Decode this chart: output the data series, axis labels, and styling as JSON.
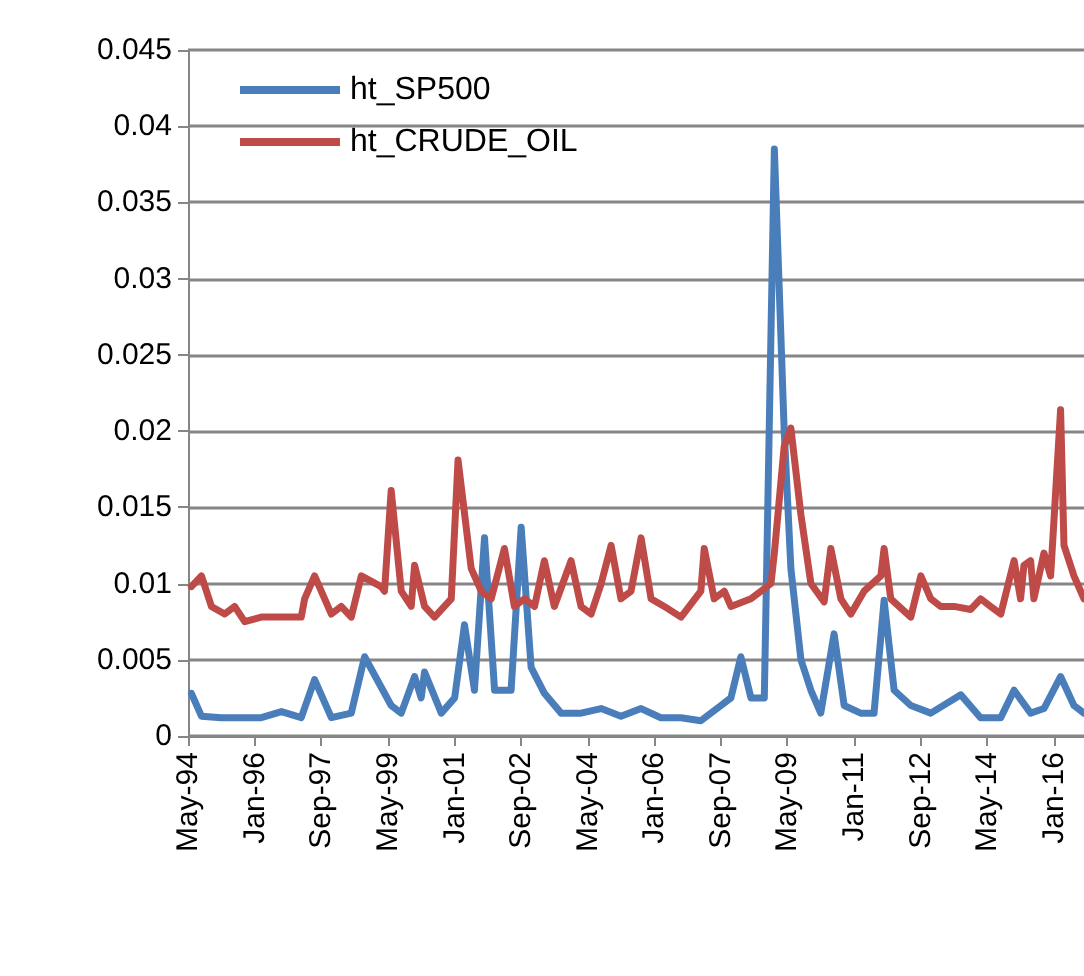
{
  "chart_data": {
    "type": "line",
    "x": [
      "1994-06",
      "1994-09",
      "1995-03",
      "1996-03",
      "1996-09",
      "1997-03",
      "1997-07",
      "1997-12",
      "1998-06",
      "1998-10",
      "1999-06",
      "1999-09",
      "2000-01",
      "2000-03",
      "2000-04",
      "2000-09",
      "2001-01",
      "2001-04",
      "2001-07",
      "2001-10",
      "2002-01",
      "2002-06",
      "2002-09",
      "2002-12",
      "2003-04",
      "2003-09",
      "2004-03",
      "2004-09",
      "2005-03",
      "2005-09",
      "2006-03",
      "2006-09",
      "2007-03",
      "2007-09",
      "2007-12",
      "2008-03",
      "2008-06",
      "2008-10",
      "2009-01",
      "2009-04",
      "2009-06",
      "2009-09",
      "2009-12",
      "2010-03",
      "2010-07",
      "2010-10",
      "2011-03",
      "2011-07",
      "2011-10",
      "2012-01",
      "2012-06",
      "2012-12",
      "2013-09",
      "2014-03",
      "2014-09",
      "2015-01",
      "2015-06",
      "2015-10",
      "2016-03",
      "2016-07",
      "2016-10"
    ],
    "series": [
      {
        "name": "ht_SP500",
        "color": "#4a7ebb",
        "values": [
          0.0028,
          0.0013,
          0.0012,
          0.0012,
          0.0016,
          0.0012,
          0.0037,
          0.0012,
          0.0015,
          0.0052,
          0.002,
          0.0015,
          0.0039,
          0.0025,
          0.0042,
          0.0015,
          0.0025,
          0.0073,
          0.003,
          0.013,
          0.003,
          0.003,
          0.0137,
          0.0045,
          0.0028,
          0.0015,
          0.0015,
          0.0018,
          0.0013,
          0.0018,
          0.0012,
          0.0012,
          0.001,
          0.002,
          0.0025,
          0.0052,
          0.0025,
          0.0025,
          0.0385,
          0.02,
          0.011,
          0.005,
          0.003,
          0.0015,
          0.0067,
          0.002,
          0.0015,
          0.0015,
          0.0089,
          0.003,
          0.002,
          0.0015,
          0.0027,
          0.0012,
          0.0012,
          0.003,
          0.0015,
          0.0018,
          0.0039,
          0.002,
          0.0015
        ]
      },
      {
        "name": "ht_CRUDE_OIL",
        "color": "#be4b48",
        "x": [
          "1994-06",
          "1994-09",
          "1994-12",
          "1995-04",
          "1995-07",
          "1995-10",
          "1996-03",
          "1996-09",
          "1997-03",
          "1997-04",
          "1997-07",
          "1997-12",
          "1998-03",
          "1998-06",
          "1998-09",
          "1999-03",
          "1999-04",
          "1999-06",
          "1999-09",
          "1999-12",
          "2000-01",
          "2000-04",
          "2000-07",
          "2000-12",
          "2001-02",
          "2001-06",
          "2001-09",
          "2001-12",
          "2002-04",
          "2002-07",
          "2002-10",
          "2003-01",
          "2003-04",
          "2003-07",
          "2003-12",
          "2004-03",
          "2004-06",
          "2004-09",
          "2004-12",
          "2005-03",
          "2005-06",
          "2005-09",
          "2005-12",
          "2006-04",
          "2006-09",
          "2007-03",
          "2007-04",
          "2007-07",
          "2007-10",
          "2007-12",
          "2008-06",
          "2008-12",
          "2009-01",
          "2009-04",
          "2009-06",
          "2009-09",
          "2009-12",
          "2010-04",
          "2010-06",
          "2010-09",
          "2010-12",
          "2011-04",
          "2011-09",
          "2011-10",
          "2011-12",
          "2012-06",
          "2012-09",
          "2012-12",
          "2013-03",
          "2013-07",
          "2013-12",
          "2014-03",
          "2014-06",
          "2014-09",
          "2015-01",
          "2015-03",
          "2015-04",
          "2015-06",
          "2015-07",
          "2015-10",
          "2015-12",
          "2016-03",
          "2016-04",
          "2016-07",
          "2016-10"
        ],
        "values": [
          0.0098,
          0.0105,
          0.0085,
          0.008,
          0.0085,
          0.0075,
          0.0078,
          0.0078,
          0.0078,
          0.009,
          0.0105,
          0.008,
          0.0085,
          0.0078,
          0.0105,
          0.0098,
          0.0095,
          0.0161,
          0.0095,
          0.0085,
          0.0112,
          0.0085,
          0.0078,
          0.009,
          0.0181,
          0.011,
          0.0095,
          0.009,
          0.0123,
          0.0085,
          0.009,
          0.0085,
          0.0115,
          0.0085,
          0.0115,
          0.0085,
          0.008,
          0.01,
          0.0125,
          0.009,
          0.0095,
          0.013,
          0.009,
          0.0085,
          0.0078,
          0.0095,
          0.0123,
          0.009,
          0.0095,
          0.0085,
          0.009,
          0.01,
          0.012,
          0.019,
          0.0202,
          0.0145,
          0.01,
          0.0088,
          0.0123,
          0.009,
          0.008,
          0.0095,
          0.0105,
          0.0123,
          0.009,
          0.0078,
          0.0105,
          0.009,
          0.0085,
          0.0085,
          0.0083,
          0.009,
          0.0085,
          0.008,
          0.0115,
          0.009,
          0.0112,
          0.0115,
          0.009,
          0.012,
          0.0105,
          0.0214,
          0.0125,
          0.0105,
          0.009
        ]
      }
    ],
    "xlim": [
      "1994-05",
      "2016-10"
    ],
    "xticks": [
      {
        "value": "1994-05",
        "label": "May-94"
      },
      {
        "value": "1996-01",
        "label": "Jan-96"
      },
      {
        "value": "1997-09",
        "label": "Sep-97"
      },
      {
        "value": "1999-05",
        "label": "May-99"
      },
      {
        "value": "2001-01",
        "label": "Jan-01"
      },
      {
        "value": "2002-09",
        "label": "Sep-02"
      },
      {
        "value": "2004-05",
        "label": "May-04"
      },
      {
        "value": "2006-01",
        "label": "Jan-06"
      },
      {
        "value": "2007-09",
        "label": "Sep-07"
      },
      {
        "value": "2009-05",
        "label": "May-09"
      },
      {
        "value": "2011-01",
        "label": "Jan-11"
      },
      {
        "value": "2012-09",
        "label": "Sep-12"
      },
      {
        "value": "2014-05",
        "label": "May-14"
      },
      {
        "value": "2016-01",
        "label": "Jan-16"
      }
    ],
    "ylim": [
      0,
      0.045
    ],
    "yticks": [
      0,
      0.005,
      0.01,
      0.015,
      0.02,
      0.025,
      0.03,
      0.035,
      0.04,
      0.045
    ],
    "grid": "y",
    "legend": "top left",
    "marker": "none",
    "line_style": "solid"
  }
}
